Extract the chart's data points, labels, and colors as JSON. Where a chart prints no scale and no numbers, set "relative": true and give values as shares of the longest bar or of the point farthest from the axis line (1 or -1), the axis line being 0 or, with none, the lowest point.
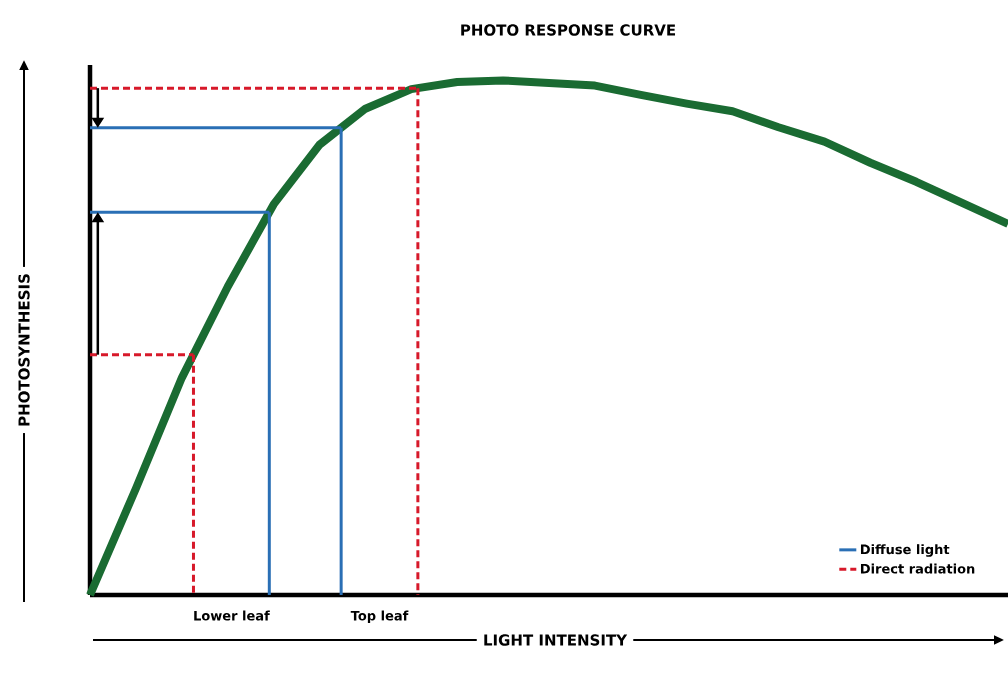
{
  "chart_data": {
    "type": "line",
    "title": "PHOTO RESPONSE CURVE",
    "xlabel": "LIGHT INTENSITY",
    "ylabel": "PHOTOSYNTHESIS",
    "relative": true,
    "tick_labels": false,
    "legend": "bottom right",
    "marker": "none",
    "categories": [
      null,
      null,
      null,
      null,
      null,
      null,
      null,
      null,
      null,
      null,
      null,
      null,
      null,
      null,
      null,
      null,
      null,
      null,
      null,
      null,
      null
    ],
    "series": [
      {
        "color": "#1a6b32",
        "values": [
          0,
          0.207,
          0.422,
          0.599,
          0.759,
          0.875,
          0.945,
          0.983,
          0.997,
          1,
          0.995,
          0.99,
          0.972,
          0.955,
          0.94,
          0.909,
          0.881,
          0.84,
          0.803,
          0.762,
          0.721
        ]
      }
    ],
    "ref_lines": [
      {
        "axis": "y",
        "value": 0.467,
        "color": "#d7192a",
        "line_style": "dashed",
        "label": "Direct radiation"
      },
      {
        "axis": "y",
        "value": 0.744,
        "color": "#2a6fb5",
        "line_style": "solid",
        "label": "Diffuse light"
      },
      {
        "axis": "y",
        "value": 0.908,
        "color": "#2a6fb5",
        "line_style": "solid"
      },
      {
        "axis": "y",
        "value": 0.985,
        "color": "#d7192a",
        "line_style": "dashed"
      }
    ],
    "annotations": [
      "Lower leaf",
      "Top leaf"
    ]
  }
}
